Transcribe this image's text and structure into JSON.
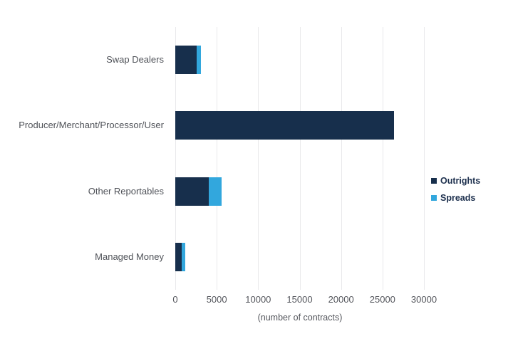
{
  "chart_data": {
    "type": "bar",
    "orientation": "horizontal",
    "title": "",
    "categories": [
      "Swap Dealers",
      "Producer/Merchant/Processor/User",
      "Other Reportables",
      "Managed Money"
    ],
    "series": [
      {
        "name": "Outrights",
        "color": "#172F4C",
        "values": [
          2600,
          26400,
          4000,
          800
        ]
      },
      {
        "name": "Spreads",
        "color": "#32A7DD",
        "values": [
          500,
          0,
          1600,
          400
        ]
      }
    ],
    "xlabel": "(number of contracts)",
    "xlim": [
      0,
      30000
    ],
    "xticks": [
      0,
      5000,
      10000,
      15000,
      20000,
      25000,
      30000
    ],
    "grid": true,
    "legend_position": "right",
    "colors": {
      "grid": "#E9E9EB",
      "tick_text": "#54565C",
      "category_text": "#4F5258",
      "legend_text": "#1C2F4D",
      "background": "#FFFFFF"
    }
  }
}
